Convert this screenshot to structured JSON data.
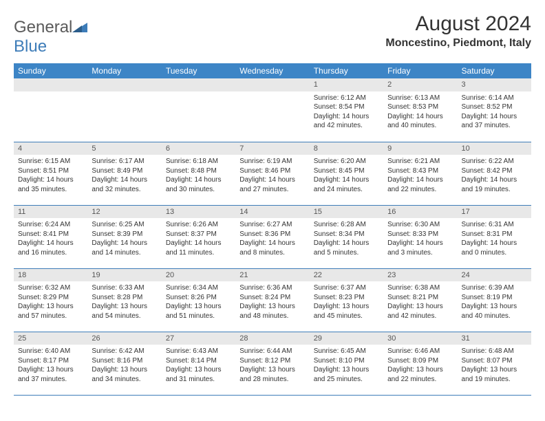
{
  "logo": {
    "text1": "General",
    "text2": "Blue"
  },
  "title": "August 2024",
  "location": "Moncestino, Piedmont, Italy",
  "colors": {
    "header_bg": "#3d85c6",
    "header_text": "#ffffff",
    "daynum_bg": "#e8e8e8",
    "border": "#3d7cb8",
    "logo_gray": "#5a5a5a",
    "logo_blue": "#3d7cb8"
  },
  "day_headers": [
    "Sunday",
    "Monday",
    "Tuesday",
    "Wednesday",
    "Thursday",
    "Friday",
    "Saturday"
  ],
  "weeks": [
    [
      null,
      null,
      null,
      null,
      {
        "n": "1",
        "sr": "6:12 AM",
        "ss": "8:54 PM",
        "dl": "14 hours and 42 minutes."
      },
      {
        "n": "2",
        "sr": "6:13 AM",
        "ss": "8:53 PM",
        "dl": "14 hours and 40 minutes."
      },
      {
        "n": "3",
        "sr": "6:14 AM",
        "ss": "8:52 PM",
        "dl": "14 hours and 37 minutes."
      }
    ],
    [
      {
        "n": "4",
        "sr": "6:15 AM",
        "ss": "8:51 PM",
        "dl": "14 hours and 35 minutes."
      },
      {
        "n": "5",
        "sr": "6:17 AM",
        "ss": "8:49 PM",
        "dl": "14 hours and 32 minutes."
      },
      {
        "n": "6",
        "sr": "6:18 AM",
        "ss": "8:48 PM",
        "dl": "14 hours and 30 minutes."
      },
      {
        "n": "7",
        "sr": "6:19 AM",
        "ss": "8:46 PM",
        "dl": "14 hours and 27 minutes."
      },
      {
        "n": "8",
        "sr": "6:20 AM",
        "ss": "8:45 PM",
        "dl": "14 hours and 24 minutes."
      },
      {
        "n": "9",
        "sr": "6:21 AM",
        "ss": "8:43 PM",
        "dl": "14 hours and 22 minutes."
      },
      {
        "n": "10",
        "sr": "6:22 AM",
        "ss": "8:42 PM",
        "dl": "14 hours and 19 minutes."
      }
    ],
    [
      {
        "n": "11",
        "sr": "6:24 AM",
        "ss": "8:41 PM",
        "dl": "14 hours and 16 minutes."
      },
      {
        "n": "12",
        "sr": "6:25 AM",
        "ss": "8:39 PM",
        "dl": "14 hours and 14 minutes."
      },
      {
        "n": "13",
        "sr": "6:26 AM",
        "ss": "8:37 PM",
        "dl": "14 hours and 11 minutes."
      },
      {
        "n": "14",
        "sr": "6:27 AM",
        "ss": "8:36 PM",
        "dl": "14 hours and 8 minutes."
      },
      {
        "n": "15",
        "sr": "6:28 AM",
        "ss": "8:34 PM",
        "dl": "14 hours and 5 minutes."
      },
      {
        "n": "16",
        "sr": "6:30 AM",
        "ss": "8:33 PM",
        "dl": "14 hours and 3 minutes."
      },
      {
        "n": "17",
        "sr": "6:31 AM",
        "ss": "8:31 PM",
        "dl": "14 hours and 0 minutes."
      }
    ],
    [
      {
        "n": "18",
        "sr": "6:32 AM",
        "ss": "8:29 PM",
        "dl": "13 hours and 57 minutes."
      },
      {
        "n": "19",
        "sr": "6:33 AM",
        "ss": "8:28 PM",
        "dl": "13 hours and 54 minutes."
      },
      {
        "n": "20",
        "sr": "6:34 AM",
        "ss": "8:26 PM",
        "dl": "13 hours and 51 minutes."
      },
      {
        "n": "21",
        "sr": "6:36 AM",
        "ss": "8:24 PM",
        "dl": "13 hours and 48 minutes."
      },
      {
        "n": "22",
        "sr": "6:37 AM",
        "ss": "8:23 PM",
        "dl": "13 hours and 45 minutes."
      },
      {
        "n": "23",
        "sr": "6:38 AM",
        "ss": "8:21 PM",
        "dl": "13 hours and 42 minutes."
      },
      {
        "n": "24",
        "sr": "6:39 AM",
        "ss": "8:19 PM",
        "dl": "13 hours and 40 minutes."
      }
    ],
    [
      {
        "n": "25",
        "sr": "6:40 AM",
        "ss": "8:17 PM",
        "dl": "13 hours and 37 minutes."
      },
      {
        "n": "26",
        "sr": "6:42 AM",
        "ss": "8:16 PM",
        "dl": "13 hours and 34 minutes."
      },
      {
        "n": "27",
        "sr": "6:43 AM",
        "ss": "8:14 PM",
        "dl": "13 hours and 31 minutes."
      },
      {
        "n": "28",
        "sr": "6:44 AM",
        "ss": "8:12 PM",
        "dl": "13 hours and 28 minutes."
      },
      {
        "n": "29",
        "sr": "6:45 AM",
        "ss": "8:10 PM",
        "dl": "13 hours and 25 minutes."
      },
      {
        "n": "30",
        "sr": "6:46 AM",
        "ss": "8:09 PM",
        "dl": "13 hours and 22 minutes."
      },
      {
        "n": "31",
        "sr": "6:48 AM",
        "ss": "8:07 PM",
        "dl": "13 hours and 19 minutes."
      }
    ]
  ],
  "labels": {
    "sunrise": "Sunrise:",
    "sunset": "Sunset:",
    "daylight": "Daylight:"
  }
}
